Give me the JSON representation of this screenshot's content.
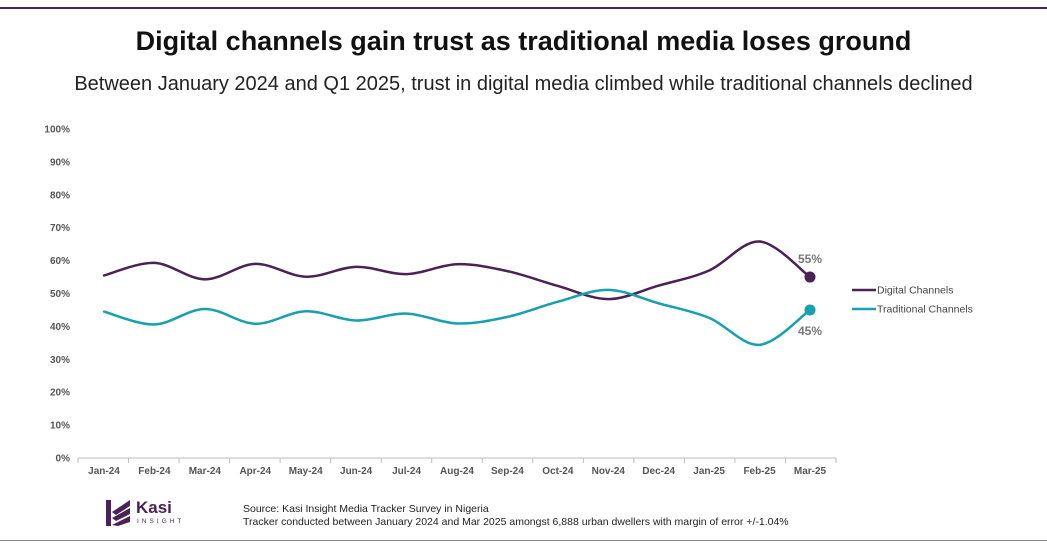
{
  "title": "Digital channels gain trust as traditional media loses ground",
  "subtitle": "Between January 2024 and Q1 2025, trust in digital media climbed while traditional channels declined",
  "chart_data": {
    "type": "line",
    "categories": [
      "Jan-24",
      "Feb-24",
      "Mar-24",
      "Apr-24",
      "May-24",
      "Jun-24",
      "Jul-24",
      "Aug-24",
      "Sep-24",
      "Oct-24",
      "Nov-24",
      "Dec-24",
      "Jan-25",
      "Feb-25",
      "Mar-25"
    ],
    "series": [
      {
        "name": "Digital Channels",
        "color": "#4a2255",
        "values": [
          55.5,
          59.3,
          54.3,
          59.0,
          55.1,
          58.1,
          55.9,
          58.9,
          56.8,
          52.3,
          48.3,
          52.4,
          57.0,
          65.8,
          55.0
        ]
      },
      {
        "name": "Traditional Channels",
        "color": "#17a0ad",
        "values": [
          44.5,
          40.6,
          45.3,
          40.8,
          44.6,
          41.8,
          43.9,
          40.9,
          42.9,
          47.5,
          51.1,
          47.0,
          42.6,
          34.4,
          45.0
        ]
      }
    ],
    "end_labels": {
      "Digital Channels": "55%",
      "Traditional Channels": "45%"
    },
    "y_ticks": [
      "0%",
      "10%",
      "20%",
      "30%",
      "40%",
      "50%",
      "60%",
      "70%",
      "80%",
      "90%",
      "100%"
    ],
    "ylim": [
      0,
      100
    ],
    "grid": false,
    "legend_position": "right",
    "xlabel": "",
    "ylabel": ""
  },
  "footer": {
    "logo_word": "Kasi",
    "logo_sub": "INSIGHT",
    "source_line1": "Source: Kasi Insight Media Tracker Survey in Nigeria",
    "source_line2": "Tracker conducted  between  January 2024 and Mar 2025 amongst 6,888 urban dwellers with margin of error +/-1.04%"
  }
}
